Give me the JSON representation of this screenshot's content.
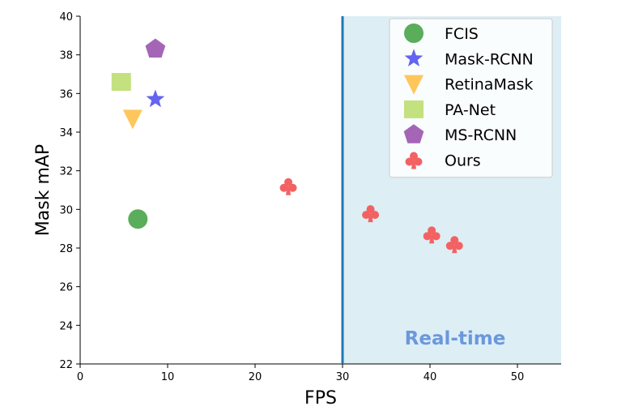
{
  "chart_data": {
    "type": "scatter",
    "xlabel": "FPS",
    "ylabel": "Mask mAP",
    "xlim": [
      0,
      55
    ],
    "ylim": [
      22,
      40
    ],
    "xticks": [
      0,
      10,
      20,
      30,
      40,
      50
    ],
    "yticks": [
      22,
      24,
      26,
      28,
      30,
      32,
      34,
      36,
      38,
      40
    ],
    "grid": false,
    "legend_position": "top-right",
    "realtime_region": {
      "x_start": 30,
      "label": "Real-time",
      "fill": "#ddeef5",
      "line_color": "#1f77b4",
      "label_color": "#6b98dc"
    },
    "series": [
      {
        "name": "FCIS",
        "marker": "circle",
        "color": "#5aad5a",
        "points": [
          [
            6.6,
            29.5
          ]
        ]
      },
      {
        "name": "Mask-RCNN",
        "marker": "star",
        "color": "#6464f0",
        "points": [
          [
            8.6,
            35.7
          ]
        ]
      },
      {
        "name": "RetinaMask",
        "marker": "triangle-down",
        "color": "#ffc65c",
        "points": [
          [
            6.0,
            34.7
          ]
        ]
      },
      {
        "name": "PA-Net",
        "marker": "square",
        "color": "#c3e17f",
        "points": [
          [
            4.7,
            36.6
          ]
        ]
      },
      {
        "name": "MS-RCNN",
        "marker": "pentagon",
        "color": "#a565b6",
        "points": [
          [
            8.6,
            38.3
          ]
        ]
      },
      {
        "name": "Ours",
        "marker": "club",
        "color": "#f36262",
        "points": [
          [
            23.8,
            31.2
          ],
          [
            33.2,
            29.8
          ],
          [
            40.2,
            28.7
          ],
          [
            42.8,
            28.2
          ]
        ]
      }
    ]
  }
}
